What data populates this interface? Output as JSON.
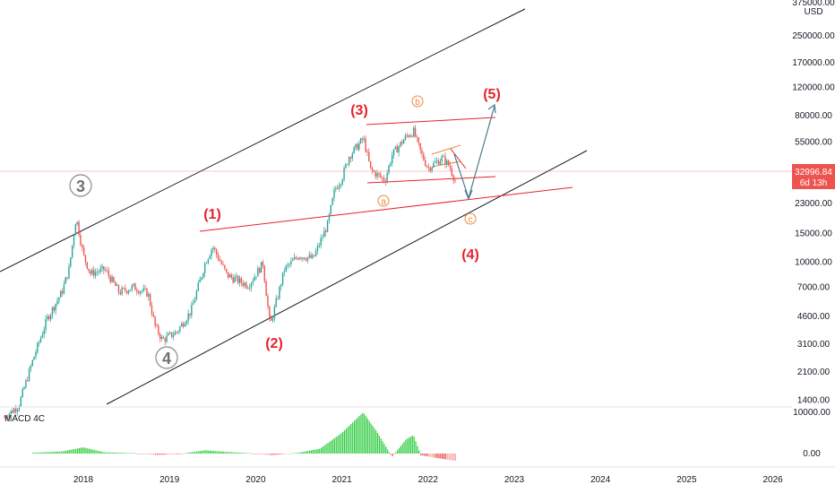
{
  "chart_data": [
    {
      "type": "candlestick",
      "title": "",
      "currency": "USD",
      "price_scale": "log",
      "y_tick_labels": [
        "375000.00",
        "250000.00",
        "170000.00",
        "120000.00",
        "80000.00",
        "55000.00",
        "23000.00",
        "15000.00",
        "10000.00",
        "7000.00",
        "4600.00",
        "3100.00",
        "2100.00",
        "1400.00"
      ],
      "x_tick_labels": [
        "2018",
        "2019",
        "2020",
        "2021",
        "2022",
        "2023",
        "2024",
        "2025",
        "2026"
      ],
      "current_price": "32996.84",
      "countdown": "6d 13h",
      "colors": {
        "up": "#26a69a",
        "down": "#ef5350",
        "annotation_red": "#e5232b",
        "annotation_orange": "#f0883e",
        "channel": "#131722",
        "projection": "#4a7c8c"
      },
      "price_path": [
        [
          "2017-02",
          1100
        ],
        [
          "2017-04",
          1300
        ],
        [
          "2017-06",
          2500
        ],
        [
          "2017-08",
          4500
        ],
        [
          "2017-10",
          6500
        ],
        [
          "2017-11",
          9000
        ],
        [
          "2017-12",
          19000
        ],
        [
          "2018-01",
          11000
        ],
        [
          "2018-02",
          8500
        ],
        [
          "2018-04",
          9000
        ],
        [
          "2018-06",
          6500
        ],
        [
          "2018-08",
          7000
        ],
        [
          "2018-10",
          6400
        ],
        [
          "2018-11",
          4000
        ],
        [
          "2018-12",
          3300
        ],
        [
          "2019-02",
          3700
        ],
        [
          "2019-04",
          5000
        ],
        [
          "2019-06",
          10000
        ],
        [
          "2019-07",
          12500
        ],
        [
          "2019-09",
          8300
        ],
        [
          "2019-11",
          7500
        ],
        [
          "2019-12",
          7200
        ],
        [
          "2020-02",
          9800
        ],
        [
          "2020-03",
          4000
        ],
        [
          "2020-05",
          9000
        ],
        [
          "2020-07",
          11000
        ],
        [
          "2020-09",
          10500
        ],
        [
          "2020-11",
          17000
        ],
        [
          "2020-12",
          28000
        ],
        [
          "2021-01",
          33000
        ],
        [
          "2021-02",
          45000
        ],
        [
          "2021-04",
          58000
        ],
        [
          "2021-05",
          37000
        ],
        [
          "2021-07",
          32000
        ],
        [
          "2021-08",
          46000
        ],
        [
          "2021-10",
          60000
        ],
        [
          "2021-11",
          64000
        ],
        [
          "2021-12",
          47000
        ],
        [
          "2022-01",
          38000
        ],
        [
          "2022-02",
          41000
        ],
        [
          "2022-03",
          44000
        ],
        [
          "2022-04",
          39000
        ],
        [
          "2022-05",
          30000
        ]
      ],
      "wave_labels": {
        "primary": [
          "3",
          "4"
        ],
        "intermediate": [
          "(1)",
          "(2)",
          "(3)",
          "(4)",
          "(5)"
        ],
        "minor": [
          "a",
          "b",
          "c"
        ]
      }
    },
    {
      "type": "histogram",
      "title": "MACD 4C",
      "y_tick_labels": [
        "10000.00",
        "0.00"
      ],
      "histogram": [
        [
          "2017-06",
          200
        ],
        [
          "2017-10",
          500
        ],
        [
          "2018-01",
          1500
        ],
        [
          "2018-04",
          300
        ],
        [
          "2018-08",
          100
        ],
        [
          "2018-11",
          -300
        ],
        [
          "2019-02",
          -200
        ],
        [
          "2019-06",
          800
        ],
        [
          "2019-09",
          400
        ],
        [
          "2019-12",
          100
        ],
        [
          "2020-03",
          -400
        ],
        [
          "2020-07",
          200
        ],
        [
          "2020-10",
          1200
        ],
        [
          "2021-01",
          5000
        ],
        [
          "2021-04",
          10000
        ],
        [
          "2021-06",
          5000
        ],
        [
          "2021-08",
          -800
        ],
        [
          "2021-10",
          3500
        ],
        [
          "2021-11",
          4500
        ],
        [
          "2021-12",
          -400
        ],
        [
          "2022-02",
          -1000
        ],
        [
          "2022-05",
          -1800
        ]
      ]
    }
  ]
}
